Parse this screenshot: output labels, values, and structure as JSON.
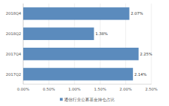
{
  "chart_data": {
    "type": "bar",
    "orientation": "horizontal",
    "categories": [
      "2017Q2",
      "2017Q4",
      "2018Q2",
      "2018Q4"
    ],
    "series": [
      {
        "name": "通信行业公募基金持仓占比",
        "color": "#5b8bbd",
        "values": [
          2.14,
          2.25,
          1.38,
          2.07
        ],
        "value_labels": [
          "2.14%",
          "2.25%",
          "1.38%",
          "2.07%"
        ]
      }
    ],
    "xlim": [
      0,
      2.5
    ],
    "xticks": [
      {
        "value": 0,
        "label": "0.00%"
      },
      {
        "value": 0.5,
        "label": "0.50%"
      },
      {
        "value": 1,
        "label": "1.00%"
      },
      {
        "value": 1.5,
        "label": "1.50%"
      },
      {
        "value": 2,
        "label": "2.00%"
      },
      {
        "value": 2.5,
        "label": "2.50%"
      }
    ],
    "grid": true,
    "data_labels": true,
    "legend": "bottom"
  }
}
